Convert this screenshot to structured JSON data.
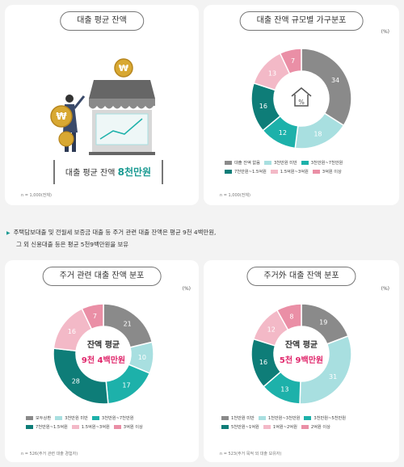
{
  "panel1": {
    "title": "대출 평균 잔액",
    "summary_prefix": "대출 평균 잔액",
    "summary_value": "8천만원",
    "note": "n = 1,000(전체)"
  },
  "panel2": {
    "title": "대출 잔액 규모별 가구분포",
    "unit": "(%)",
    "note": "n = 1,000(전체)",
    "center_label": "%"
  },
  "bullets": [
    "주택담보대출 및 전월세 보증금 대출 등 주거 관련 대출 잔액은 평균 9천 4백만원,",
    "그 외 신용대출 등은 평균 5천9백만원을 보유"
  ],
  "panel3": {
    "title": "주거 관련 대출 잔액 분포",
    "unit": "(%)",
    "center_title": "잔액 평균",
    "center_value": "9천 4백만원",
    "note": "n = 526(주거 관련 대출 경험자)"
  },
  "panel4": {
    "title": "주거外 대출 잔액 분포",
    "unit": "(%)",
    "center_title": "잔액 평균",
    "center_value": "5천 9백만원",
    "note": "n = 523(주거 목적 외 대출 보유자)"
  },
  "colors": {
    "gray": "#8a8a8a",
    "light_teal": "#a8dfe0",
    "teal": "#1db1aa",
    "dark_teal": "#0e7d78",
    "light_pink": "#f3b9c7",
    "pink": "#ea8fa6",
    "accent_teal": "#1a9a92",
    "accent_pink": "#e0266b"
  },
  "chart_data": [
    {
      "type": "pie",
      "title": "대출 잔액 규모별 가구분포",
      "categories": [
        "대출 잔액 없음",
        "3천만원 미만",
        "3천만원~7천만원",
        "7천만원~1.5억원",
        "1.5억원~3억원",
        "3억원 이상"
      ],
      "values": [
        34,
        18,
        12,
        16,
        13,
        7
      ],
      "colors": [
        "#8a8a8a",
        "#a8dfe0",
        "#1db1aa",
        "#0e7d78",
        "#f3b9c7",
        "#ea8fa6"
      ],
      "legend_rows": [
        [
          0,
          1,
          2
        ],
        [
          3,
          4,
          5
        ]
      ]
    },
    {
      "type": "pie",
      "title": "주거 관련 대출 잔액 분포",
      "categories": [
        "모두상환",
        "3천만원 미만",
        "3천만원~7천만원",
        "7천만원~1.5억원",
        "1.5억원~3억원",
        "3억원 이상"
      ],
      "values": [
        21,
        10,
        17,
        28,
        16,
        7
      ],
      "colors": [
        "#8a8a8a",
        "#a8dfe0",
        "#1db1aa",
        "#0e7d78",
        "#f3b9c7",
        "#ea8fa6"
      ],
      "legend_rows": [
        [
          0,
          1,
          2
        ],
        [
          3,
          4,
          5
        ]
      ]
    },
    {
      "type": "pie",
      "title": "주거外 대출 잔액 분포",
      "categories": [
        "1천만원 미만",
        "1천만원~3천만원",
        "3천만원~5천만원",
        "5천만원~1억원",
        "1억원~2억원",
        "2억원 이상"
      ],
      "values": [
        19,
        31,
        13,
        16,
        12,
        8
      ],
      "colors": [
        "#8a8a8a",
        "#a8dfe0",
        "#1db1aa",
        "#0e7d78",
        "#f3b9c7",
        "#ea8fa6"
      ],
      "legend_rows": [
        [
          0,
          1,
          2
        ],
        [
          3,
          4,
          5
        ]
      ]
    }
  ]
}
